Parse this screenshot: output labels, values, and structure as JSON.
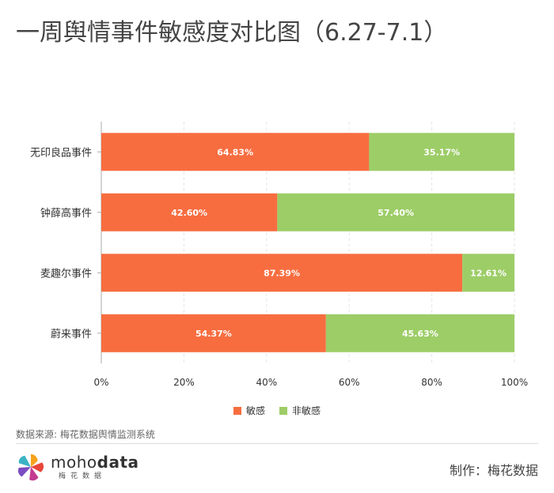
{
  "title": "一周舆情事件敏感度对比图（6.27-7.1）",
  "source": "数据来源: 梅花数据舆情监测系统",
  "producer": "制作：梅花数据",
  "logo": {
    "brand_light": "moho",
    "brand_bold": "data",
    "sub": "梅花数据"
  },
  "colors": {
    "sensitive": "#F76D40",
    "non_sensitive": "#9DCD67"
  },
  "chart_data": {
    "type": "bar",
    "orientation": "horizontal",
    "stacked": true,
    "categories": [
      "无印良品事件",
      "钟薛高事件",
      "麦趣尔事件",
      "蔚来事件"
    ],
    "series": [
      {
        "name": "敏感",
        "values": [
          64.83,
          42.6,
          87.39,
          54.37
        ],
        "labels": [
          "64.83%",
          "42.60%",
          "87.39%",
          "54.37%"
        ]
      },
      {
        "name": "非敏感",
        "values": [
          35.17,
          57.4,
          12.61,
          45.63
        ],
        "labels": [
          "35.17%",
          "57.40%",
          "12.61%",
          "45.63%"
        ]
      }
    ],
    "xlim": [
      0,
      100
    ],
    "xticks": [
      0,
      20,
      40,
      60,
      80,
      100
    ],
    "xtick_labels": [
      "0%",
      "20%",
      "40%",
      "60%",
      "80%",
      "100%"
    ],
    "grid": true,
    "legend": "bottom"
  }
}
